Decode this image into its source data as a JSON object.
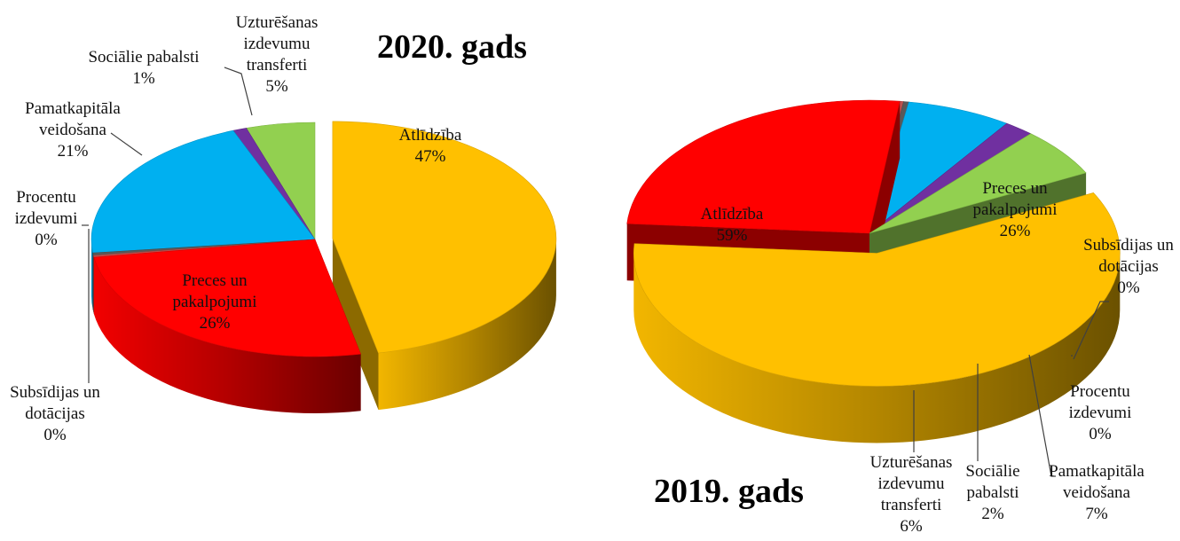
{
  "colors": {
    "Atlīdzība": "#FFC000",
    "Preces un pakalpojumi": "#FF0000",
    "Subsīdijas un dotācijas": "#C0504D",
    "Procentu izdevumi": "#595959",
    "Pamatkapitāla veidošana": "#00B0F0",
    "Sociālie pabalsti": "#7030A0",
    "Uzturēšanas izdevumu transferti": "#92D050"
  },
  "chart_data": [
    {
      "type": "pie",
      "title": "2020. gads",
      "slices": [
        {
          "name": "Atlīdzība",
          "label": [
            "Atlīdzība",
            "47%"
          ],
          "value": 47
        },
        {
          "name": "Preces un pakalpojumi",
          "label": [
            "Preces un",
            "pakalpojumi",
            "26%"
          ],
          "value": 26
        },
        {
          "name": "Subsīdijas un dotācijas",
          "label": [
            "Subsīdijas un",
            "dotācijas",
            "0%"
          ],
          "value": 0.25
        },
        {
          "name": "Procentu izdevumi",
          "label": [
            "Procentu",
            "izdevumi",
            "0%"
          ],
          "value": 0.35
        },
        {
          "name": "Pamatkapitāla veidošana",
          "label": [
            "Pamatkapitāla",
            "veidošana",
            "21%"
          ],
          "value": 21
        },
        {
          "name": "Sociālie pabalsti",
          "label": [
            "Sociālie pabalsti",
            "1%"
          ],
          "value": 1
        },
        {
          "name": "Uzturēšanas izdevumu transferti",
          "label": [
            "Uzturēšanas",
            "izdevumu",
            "transferti",
            "5%"
          ],
          "value": 5
        }
      ]
    },
    {
      "type": "pie",
      "title": "2019. gads",
      "slices": [
        {
          "name": "Atlīdzība",
          "label": [
            "Atlīdzība",
            "59%"
          ],
          "value": 59
        },
        {
          "name": "Preces un pakalpojumi",
          "label": [
            "Preces un",
            "pakalpojumi",
            "26%"
          ],
          "value": 26
        },
        {
          "name": "Subsīdijas un dotācijas",
          "label": [
            "Subsīdijas un",
            "dotācijas",
            "0%"
          ],
          "value": 0.25
        },
        {
          "name": "Procentu izdevumi",
          "label": [
            "Procentu",
            "izdevumi",
            "0%"
          ],
          "value": 0.35
        },
        {
          "name": "Pamatkapitāla veidošana",
          "label": [
            "Pamatkapitāla",
            "veidošana",
            "7%"
          ],
          "value": 7
        },
        {
          "name": "Sociālie pabalsti",
          "label": [
            "Sociālie",
            "pabalsti",
            "2%"
          ],
          "value": 2
        },
        {
          "name": "Uzturēšanas izdevumu transferti",
          "label": [
            "Uzturēšanas",
            "izdevumu",
            "transferti",
            "6%"
          ],
          "value": 6
        }
      ]
    }
  ]
}
